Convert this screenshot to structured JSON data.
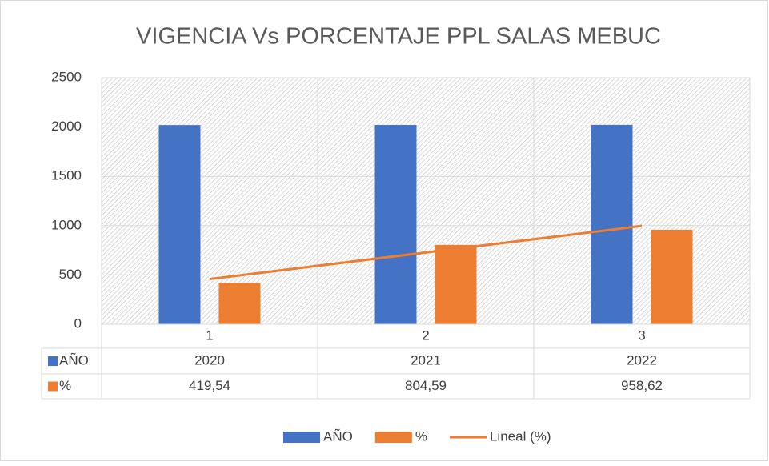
{
  "chart_data": {
    "type": "bar",
    "title": "VIGENCIA Vs PORCENTAJE PPL SALAS MEBUC",
    "categories": [
      "1",
      "2",
      "3"
    ],
    "series": [
      {
        "name": "AÑO",
        "color": "#4472c4",
        "values": [
          2020,
          2021,
          2022
        ]
      },
      {
        "name": "%",
        "color": "#ed7d31",
        "values": [
          419.54,
          804.59,
          958.62
        ],
        "value_labels": [
          "419,54",
          "804,59",
          "958,62"
        ]
      }
    ],
    "trendline": {
      "name": "Lineal (%)",
      "color": "#ed7d31",
      "values": [
        458.04,
        727.58,
        997.12
      ]
    },
    "ylim": [
      0,
      2500
    ],
    "yticks": [
      0,
      500,
      1000,
      1500,
      2000,
      2500
    ],
    "grid": true,
    "legend": "bottom",
    "data_table": true
  }
}
